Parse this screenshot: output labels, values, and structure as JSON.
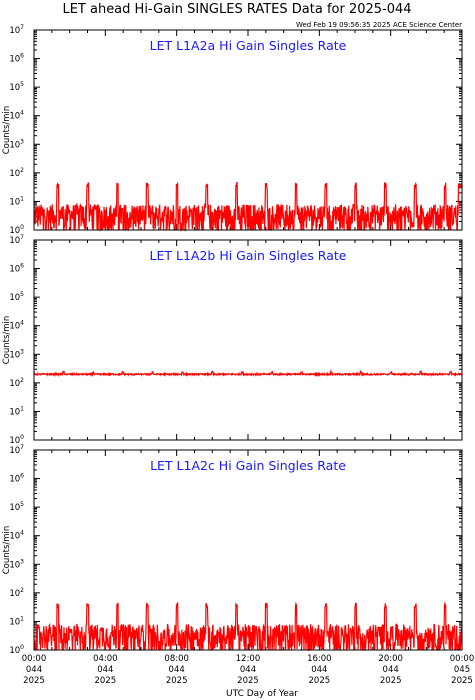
{
  "title": "LET ahead Hi-Gain SINGLES RATES Data for 2025-044",
  "timestamp": "Wed Feb 19 09:56:35 2025 ACE Science Center",
  "xlabel": "UTC Day of Year",
  "colors": {
    "trace": "#ff0000",
    "panel_title": "#1a1aff",
    "axes": "#000000"
  },
  "chart_data": [
    {
      "type": "line",
      "title": "LET L1A2a Hi Gain Singles Rate",
      "ylabel": "Counts/min",
      "yscale": "log",
      "ylim": [
        1,
        10000000
      ],
      "xlim_hours": [
        0,
        24
      ],
      "baseline_range": [
        1,
        8
      ],
      "spike_interval_hours": 1.67,
      "spike_peak": 40,
      "series": [
        {
          "color": "#ff0000"
        }
      ]
    },
    {
      "type": "line",
      "title": "LET L1A2b Hi Gain Singles Rate",
      "ylabel": "Counts/min",
      "yscale": "log",
      "ylim": [
        1,
        10000000
      ],
      "xlim_hours": [
        0,
        24
      ],
      "level": 200,
      "spike_interval_hours": 1.67,
      "spike_peak": 240,
      "series": [
        {
          "color": "#ff0000"
        }
      ]
    },
    {
      "type": "line",
      "title": "LET L1A2c Hi Gain Singles Rate",
      "ylabel": "Counts/min",
      "yscale": "log",
      "ylim": [
        1,
        10000000
      ],
      "xlim_hours": [
        0,
        24
      ],
      "baseline_range": [
        1,
        8
      ],
      "spike_interval_hours": 1.67,
      "spike_peak": 40,
      "series": [
        {
          "color": "#ff0000"
        }
      ]
    }
  ],
  "x_ticks": [
    {
      "time": "00:00",
      "day": "044",
      "year": "2025"
    },
    {
      "time": "04:00",
      "day": "044",
      "year": "2025"
    },
    {
      "time": "08:00",
      "day": "044",
      "year": "2025"
    },
    {
      "time": "12:00",
      "day": "044",
      "year": "2025"
    },
    {
      "time": "16:00",
      "day": "044",
      "year": "2025"
    },
    {
      "time": "20:00",
      "day": "044",
      "year": "2025"
    },
    {
      "time": "00:00",
      "day": "045",
      "year": "2025"
    }
  ]
}
